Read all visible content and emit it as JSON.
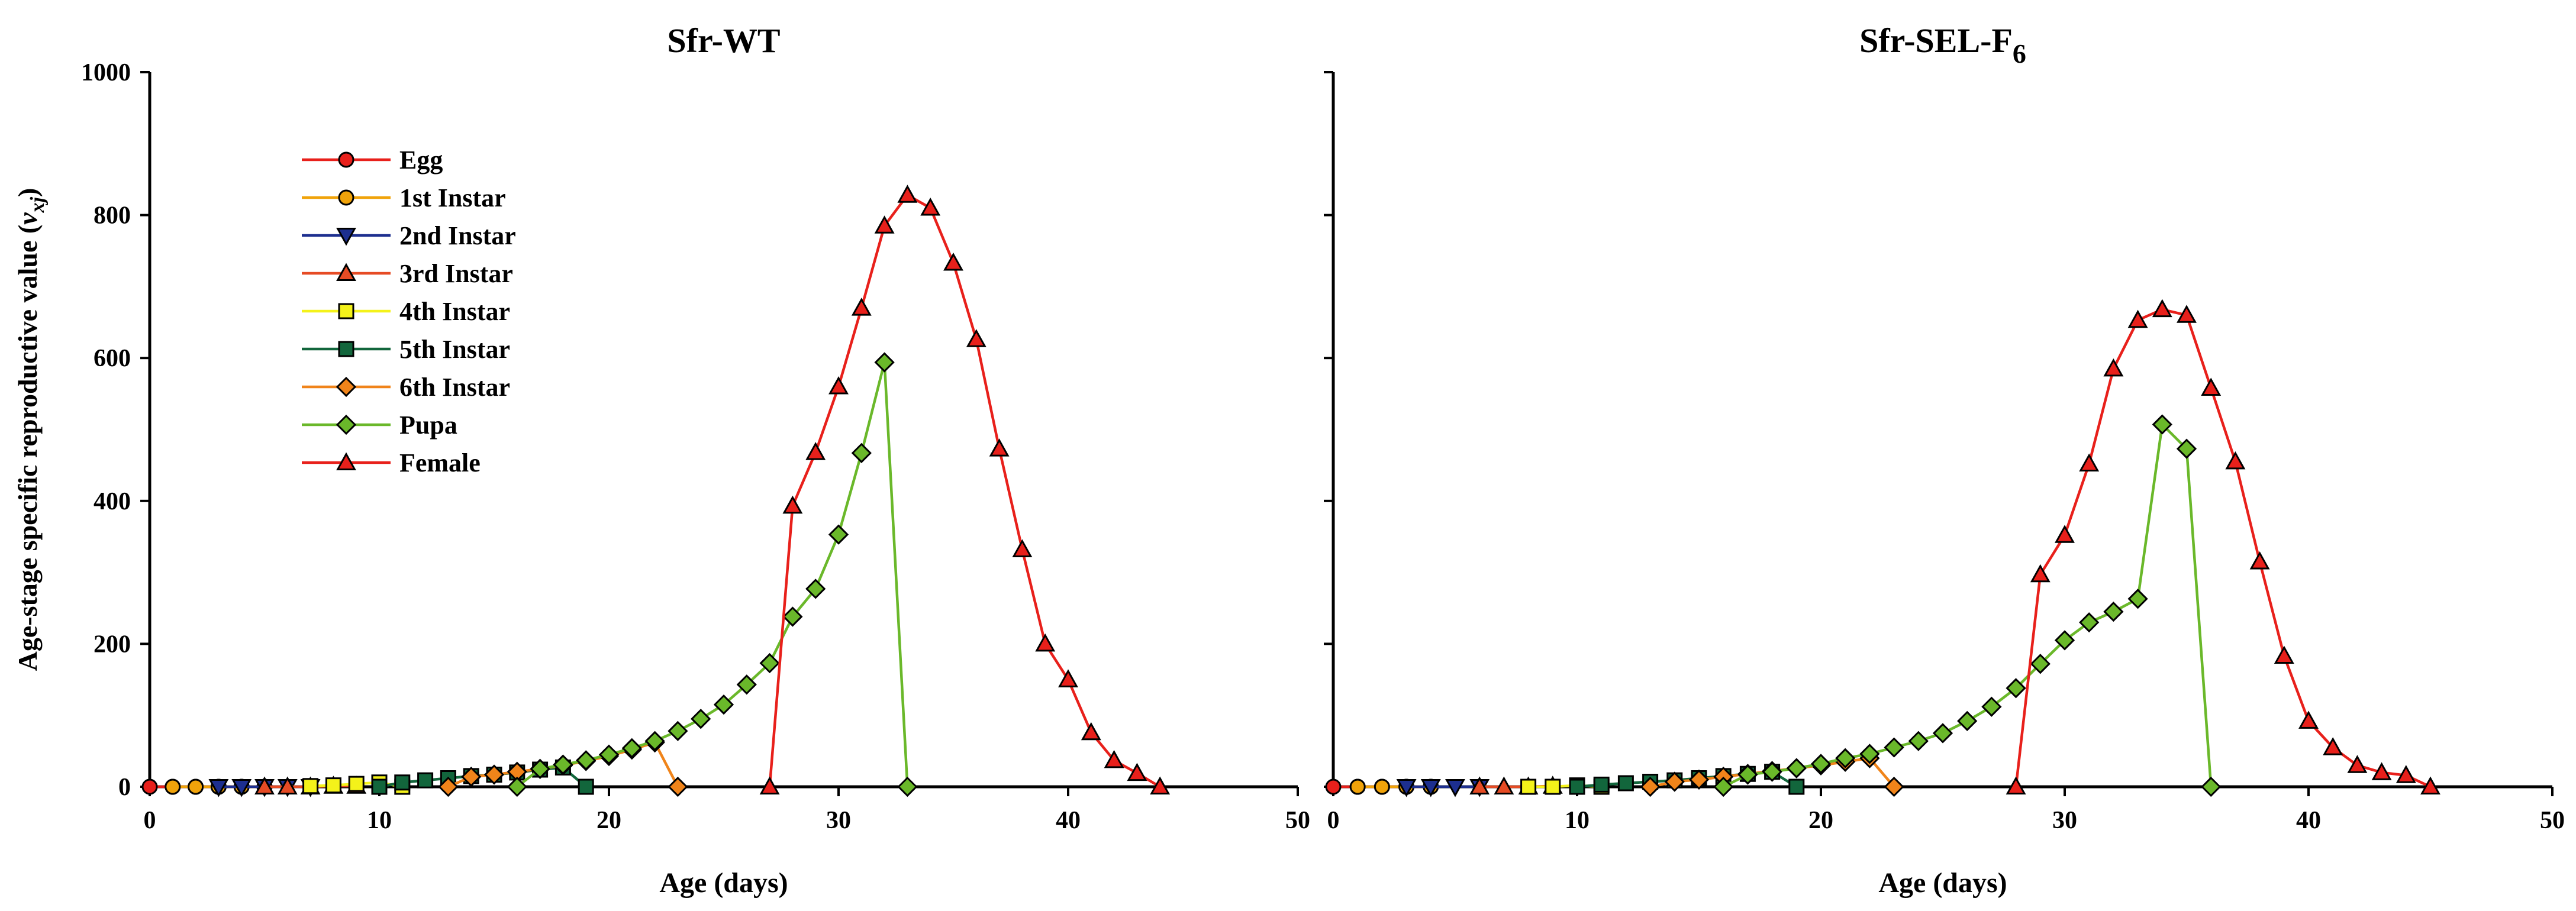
{
  "colors": {
    "egg": "#e8201b",
    "first_instar": "#f0a30a",
    "second_instar": "#1d2f8f",
    "third_instar": "#e64b24",
    "fourth_instar": "#f4f21a",
    "fifth_instar": "#12663c",
    "sixth_instar": "#f0841a",
    "pupa": "#6ab82a",
    "female": "#e8201b"
  },
  "chart_data": [
    {
      "type": "line",
      "title": "Sfr-WT",
      "title_sub": "",
      "xlabel": "Age (days)",
      "ylabel_parts": [
        "Age-stage specific reproductive value (",
        "v",
        "xj",
        ")"
      ],
      "xlim": [
        0,
        50
      ],
      "ylim": [
        0,
        1000
      ],
      "xticks": [
        0,
        10,
        20,
        30,
        40,
        50
      ],
      "yticks": [
        0,
        200,
        400,
        600,
        800,
        1000
      ],
      "grid": false,
      "legend_position": "top-left",
      "series": [
        {
          "name": "Egg",
          "color_key": "egg",
          "marker": "circle",
          "points": [
            [
              0,
              0
            ],
            [
              1,
              0
            ],
            [
              2,
              0
            ],
            [
              3,
              0
            ],
            [
              4,
              0
            ],
            [
              5,
              0
            ]
          ]
        },
        {
          "name": "1st Instar",
          "color_key": "first_instar",
          "marker": "circle",
          "points": [
            [
              1,
              0
            ],
            [
              2,
              0
            ],
            [
              3,
              0
            ],
            [
              4,
              0
            ],
            [
              5,
              0
            ]
          ]
        },
        {
          "name": "2nd Instar",
          "color_key": "second_instar",
          "marker": "triangle-down",
          "points": [
            [
              3,
              0
            ],
            [
              4,
              0
            ],
            [
              5,
              0
            ],
            [
              6,
              0
            ],
            [
              7,
              0
            ]
          ]
        },
        {
          "name": "3rd Instar",
          "color_key": "third_instar",
          "marker": "triangle-up",
          "points": [
            [
              5,
              0
            ],
            [
              6,
              0
            ],
            [
              7,
              0
            ],
            [
              8,
              1
            ],
            [
              9,
              1
            ]
          ]
        },
        {
          "name": "4th Instar",
          "color_key": "fourth_instar",
          "marker": "square",
          "points": [
            [
              7,
              1
            ],
            [
              8,
              2
            ],
            [
              9,
              4
            ],
            [
              10,
              6
            ],
            [
              11,
              0
            ]
          ]
        },
        {
          "name": "5th Instar",
          "color_key": "fifth_instar",
          "marker": "square",
          "points": [
            [
              10,
              0
            ],
            [
              11,
              6
            ],
            [
              12,
              9
            ],
            [
              13,
              12
            ],
            [
              14,
              15
            ],
            [
              15,
              17
            ],
            [
              16,
              20
            ],
            [
              17,
              24
            ],
            [
              18,
              27
            ],
            [
              19,
              0
            ]
          ]
        },
        {
          "name": "6th Instar",
          "color_key": "sixth_instar",
          "marker": "diamond",
          "points": [
            [
              13,
              0
            ],
            [
              14,
              14
            ],
            [
              15,
              17
            ],
            [
              16,
              21
            ],
            [
              17,
              25
            ],
            [
              18,
              30
            ],
            [
              19,
              36
            ],
            [
              20,
              43
            ],
            [
              21,
              52
            ],
            [
              22,
              62
            ],
            [
              23,
              0
            ]
          ]
        },
        {
          "name": "Pupa",
          "color_key": "pupa",
          "marker": "diamond",
          "points": [
            [
              16,
              0
            ],
            [
              17,
              25
            ],
            [
              18,
              31
            ],
            [
              19,
              37
            ],
            [
              20,
              45
            ],
            [
              21,
              54
            ],
            [
              22,
              64
            ],
            [
              23,
              78
            ],
            [
              24,
              95
            ],
            [
              25,
              115
            ],
            [
              26,
              143
            ],
            [
              27,
              173
            ],
            [
              28,
              238
            ],
            [
              29,
              277
            ],
            [
              30,
              353
            ],
            [
              31,
              467
            ],
            [
              32,
              594
            ],
            [
              33,
              0
            ]
          ]
        },
        {
          "name": "Female",
          "color_key": "female",
          "marker": "triangle-up",
          "points": [
            [
              27,
              0
            ],
            [
              28,
              393
            ],
            [
              29,
              468
            ],
            [
              30,
              560
            ],
            [
              31,
              670
            ],
            [
              32,
              785
            ],
            [
              33,
              828
            ],
            [
              34,
              810
            ],
            [
              35,
              733
            ],
            [
              36,
              626
            ],
            [
              37,
              473
            ],
            [
              38,
              332
            ],
            [
              39,
              200
            ],
            [
              40,
              150
            ],
            [
              41,
              76
            ],
            [
              42,
              37
            ],
            [
              43,
              19
            ],
            [
              44,
              0
            ]
          ]
        }
      ]
    },
    {
      "type": "line",
      "title": "Sfr-SEL-F",
      "title_sub": "6",
      "xlabel": "Age (days)",
      "ylabel_parts": [
        "",
        "",
        "",
        ""
      ],
      "xlim": [
        0,
        50
      ],
      "ylim": [
        0,
        1000
      ],
      "xticks": [
        0,
        10,
        20,
        30,
        40,
        50
      ],
      "yticks": [],
      "grid": false,
      "legend_position": "none",
      "series": [
        {
          "name": "Egg",
          "color_key": "egg",
          "marker": "circle",
          "points": [
            [
              0,
              0
            ],
            [
              1,
              0
            ],
            [
              2,
              0
            ],
            [
              3,
              0
            ],
            [
              4,
              0
            ]
          ]
        },
        {
          "name": "1st Instar",
          "color_key": "first_instar",
          "marker": "circle",
          "points": [
            [
              1,
              0
            ],
            [
              2,
              0
            ],
            [
              3,
              0
            ],
            [
              4,
              0
            ]
          ]
        },
        {
          "name": "2nd Instar",
          "color_key": "second_instar",
          "marker": "triangle-down",
          "points": [
            [
              3,
              0
            ],
            [
              4,
              0
            ],
            [
              5,
              0
            ],
            [
              6,
              0
            ]
          ]
        },
        {
          "name": "3rd Instar",
          "color_key": "third_instar",
          "marker": "triangle-up",
          "points": [
            [
              6,
              0
            ],
            [
              7,
              0
            ],
            [
              8,
              0
            ],
            [
              9,
              1
            ]
          ]
        },
        {
          "name": "4th Instar",
          "color_key": "fourth_instar",
          "marker": "square",
          "points": [
            [
              8,
              0
            ],
            [
              9,
              0
            ],
            [
              10,
              2
            ],
            [
              11,
              0
            ]
          ]
        },
        {
          "name": "5th Instar",
          "color_key": "fifth_instar",
          "marker": "square",
          "points": [
            [
              10,
              0
            ],
            [
              11,
              3
            ],
            [
              12,
              5
            ],
            [
              13,
              7
            ],
            [
              14,
              9
            ],
            [
              15,
              12
            ],
            [
              16,
              15
            ],
            [
              17,
              18
            ],
            [
              18,
              21
            ],
            [
              19,
              0
            ]
          ]
        },
        {
          "name": "6th Instar",
          "color_key": "sixth_instar",
          "marker": "diamond",
          "points": [
            [
              13,
              0
            ],
            [
              14,
              7
            ],
            [
              15,
              10
            ],
            [
              16,
              14
            ],
            [
              17,
              18
            ],
            [
              18,
              22
            ],
            [
              19,
              26
            ],
            [
              20,
              30
            ],
            [
              21,
              35
            ],
            [
              22,
              40
            ],
            [
              23,
              0
            ]
          ]
        },
        {
          "name": "Pupa",
          "color_key": "pupa",
          "marker": "diamond",
          "points": [
            [
              16,
              0
            ],
            [
              17,
              17
            ],
            [
              18,
              21
            ],
            [
              19,
              26
            ],
            [
              20,
              32
            ],
            [
              21,
              40
            ],
            [
              22,
              46
            ],
            [
              23,
              55
            ],
            [
              24,
              64
            ],
            [
              25,
              75
            ],
            [
              26,
              92
            ],
            [
              27,
              112
            ],
            [
              28,
              138
            ],
            [
              29,
              172
            ],
            [
              30,
              205
            ],
            [
              31,
              230
            ],
            [
              32,
              245
            ],
            [
              33,
              263
            ],
            [
              34,
              507
            ],
            [
              35,
              473
            ],
            [
              36,
              0
            ]
          ]
        },
        {
          "name": "Female",
          "color_key": "female",
          "marker": "triangle-up",
          "points": [
            [
              28,
              0
            ],
            [
              29,
              297
            ],
            [
              30,
              352
            ],
            [
              31,
              452
            ],
            [
              32,
              585
            ],
            [
              33,
              653
            ],
            [
              34,
              668
            ],
            [
              35,
              660
            ],
            [
              36,
              558
            ],
            [
              37,
              455
            ],
            [
              38,
              315
            ],
            [
              39,
              183
            ],
            [
              40,
              92
            ],
            [
              41,
              55
            ],
            [
              42,
              30
            ],
            [
              43,
              20
            ],
            [
              44,
              16
            ],
            [
              45,
              0
            ]
          ]
        }
      ]
    }
  ]
}
